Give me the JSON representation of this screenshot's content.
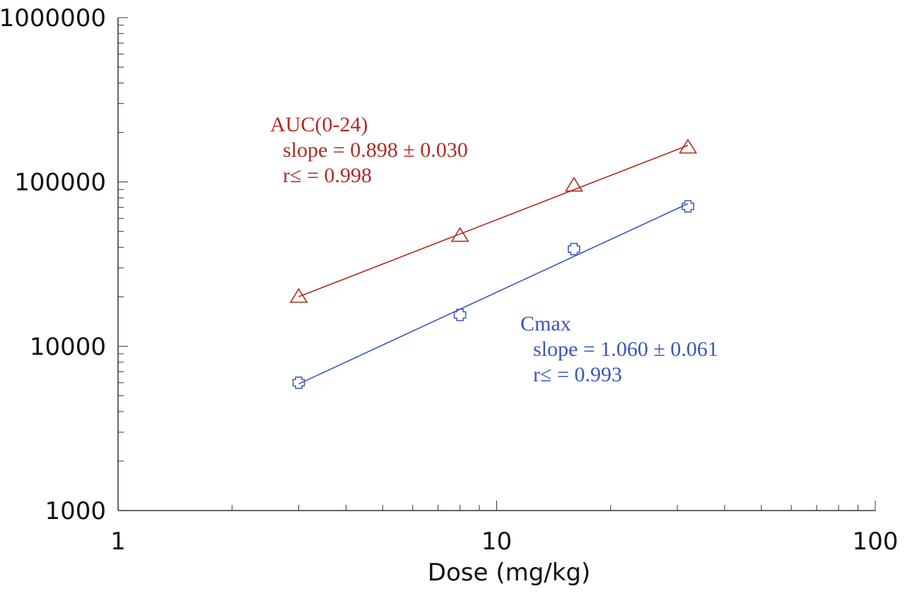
{
  "chart_data": {
    "type": "scatter",
    "title": "",
    "xlabel": "Dose (mg/kg)",
    "ylabel": "",
    "x_scale": "log",
    "y_scale": "log",
    "xlim": [
      1,
      100
    ],
    "ylim": [
      1000,
      1000000
    ],
    "x_tick_labels": [
      "1",
      "10",
      "100"
    ],
    "y_tick_labels": [
      "1000",
      "10000",
      "100000",
      "1000000"
    ],
    "grid": false,
    "series": [
      {
        "marker": "triangle",
        "color": "#b22a22",
        "x": [
          3,
          8,
          16,
          32
        ],
        "y": [
          20000,
          47000,
          95000,
          162000
        ],
        "fit_line": true,
        "annotation": [
          "AUC(0-24)",
          "slope = 0.898 ± 0.030",
          "r≤ = 0.998"
        ]
      },
      {
        "marker": "cross-circle",
        "color": "#3a55c0",
        "x": [
          3,
          8,
          16,
          32
        ],
        "y": [
          6000,
          15500,
          39000,
          71000
        ],
        "fit_line": true,
        "annotation": [
          "Cmax",
          "slope = 1.060 ± 0.061",
          "r≤ = 0.993"
        ]
      }
    ]
  }
}
